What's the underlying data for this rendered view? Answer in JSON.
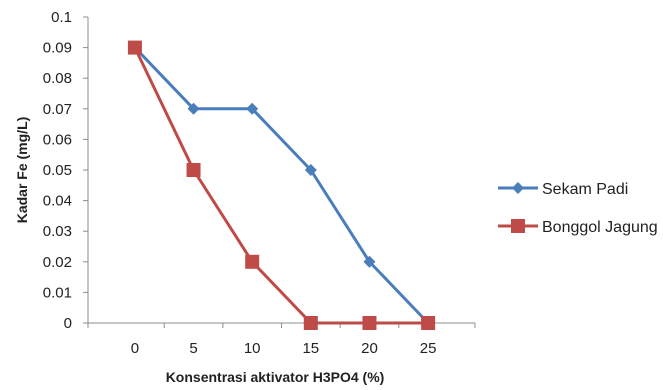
{
  "chart_data": {
    "type": "line",
    "title": "",
    "xlabel": "Konsentrasi aktivator H3PO4 (%)",
    "ylabel": "Kadar Fe (mg/L)",
    "x": [
      0,
      5,
      10,
      15,
      20,
      25
    ],
    "x_tick_labels": [
      "0",
      "5",
      "10",
      "15",
      "20",
      "25"
    ],
    "xlim": [
      -4,
      29
    ],
    "ylim": [
      0,
      0.1
    ],
    "y_ticks": [
      0,
      0.01,
      0.02,
      0.03,
      0.04,
      0.05,
      0.06,
      0.07,
      0.08,
      0.09,
      0.1
    ],
    "y_tick_labels": [
      "0",
      "0.01",
      "0.02",
      "0.03",
      "0.04",
      "0.05",
      "0.06",
      "0.07",
      "0.08",
      "0.09",
      "0.1"
    ],
    "grid": false,
    "legend_position": "right",
    "series": [
      {
        "name": "Sekam Padi",
        "values": [
          0.09,
          0.07,
          0.07,
          0.05,
          0.02,
          0
        ],
        "color": "#4a7ebb",
        "marker": "diamond"
      },
      {
        "name": "Bonggol Jagung",
        "values": [
          0.09,
          0.05,
          0.02,
          0,
          0,
          0
        ],
        "color": "#be4b48",
        "marker": "square"
      }
    ]
  }
}
